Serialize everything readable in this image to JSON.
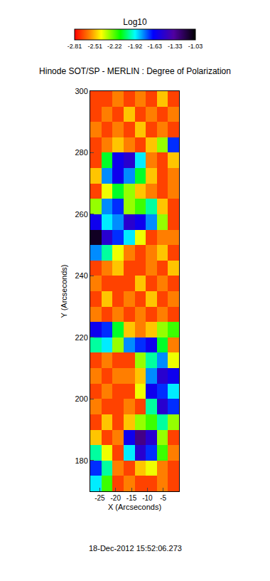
{
  "chart_data": {
    "type": "heatmap",
    "title": "Hinode SOT/SP - MERLIN : Degree of Polarization",
    "x_label": "X (Arcseconds)",
    "y_label": "Y (Arcseconds)",
    "xlim": [
      -28,
      0
    ],
    "ylim": [
      170,
      300
    ],
    "xticks": [
      -25,
      -20,
      -15,
      -10,
      -5
    ],
    "yticks": [
      180,
      200,
      220,
      240,
      260,
      280,
      300
    ],
    "grid": false,
    "x_edges": [
      -28,
      -24.5,
      -21,
      -17.5,
      -14,
      -10.5,
      -7,
      -3.5,
      0
    ],
    "y_edges": [
      170,
      175,
      180,
      185,
      190,
      195,
      200,
      205,
      210,
      215,
      220,
      225,
      230,
      235,
      240,
      245,
      250,
      255,
      260,
      265,
      270,
      275,
      280,
      285,
      290,
      295,
      300
    ],
    "z": [
      [
        -1.9,
        -2.2,
        -2.7,
        -2.6,
        -2.7,
        -2.7,
        -2.6,
        -2.7
      ],
      [
        -1.7,
        -2.0,
        -2.6,
        -2.7,
        -2.5,
        -2.4,
        -2.6,
        -2.7
      ],
      [
        -2.0,
        -2.4,
        -2.7,
        -1.9,
        -1.5,
        -1.7,
        -2.2,
        -2.6
      ],
      [
        -2.5,
        -2.7,
        -2.6,
        -1.6,
        -1.3,
        -1.5,
        -2.3,
        -2.7
      ],
      [
        -2.7,
        -2.5,
        -2.7,
        -2.5,
        -2.3,
        -2.2,
        -2.0,
        -2.3
      ],
      [
        -2.6,
        -2.7,
        -2.7,
        -2.6,
        -2.7,
        -2.0,
        -1.5,
        -1.7
      ],
      [
        -2.7,
        -2.6,
        -2.7,
        -2.7,
        -2.4,
        -1.6,
        -1.7,
        -1.9
      ],
      [
        -2.6,
        -2.7,
        -2.6,
        -2.6,
        -2.5,
        -1.8,
        -1.5,
        -1.6
      ],
      [
        -2.7,
        -2.6,
        -2.7,
        -2.7,
        -2.3,
        -2.0,
        -1.8,
        -2.4
      ],
      [
        -2.0,
        -1.9,
        -2.3,
        -1.8,
        -1.7,
        -1.6,
        -2.1,
        -2.6
      ],
      [
        -1.6,
        -1.7,
        -2.1,
        -2.5,
        -2.6,
        -2.5,
        -2.3,
        -2.2
      ],
      [
        -2.6,
        -2.7,
        -2.6,
        -2.7,
        -2.6,
        -2.7,
        -2.6,
        -2.7
      ],
      [
        -2.7,
        -2.5,
        -2.7,
        -2.6,
        -2.7,
        -2.5,
        -2.7,
        -2.6
      ],
      [
        -2.6,
        -2.7,
        -2.7,
        -2.7,
        -2.5,
        -2.7,
        -2.6,
        -2.7
      ],
      [
        -2.7,
        -2.6,
        -2.5,
        -2.7,
        -2.7,
        -2.6,
        -2.7,
        -2.5
      ],
      [
        -1.8,
        -2.0,
        -2.4,
        -2.6,
        -2.7,
        -2.6,
        -2.5,
        -2.7
      ],
      [
        -1.1,
        -1.5,
        -1.7,
        -1.9,
        -2.4,
        -2.7,
        -2.6,
        -2.6
      ],
      [
        -1.6,
        -1.9,
        -1.8,
        -1.5,
        -1.6,
        -1.8,
        -2.3,
        -2.7
      ],
      [
        -2.3,
        -1.8,
        -1.7,
        -2.3,
        -2.2,
        -2.0,
        -2.5,
        -2.7
      ],
      [
        -2.7,
        -2.4,
        -2.1,
        -2.3,
        -2.5,
        -2.6,
        -2.7,
        -2.6
      ],
      [
        -2.5,
        -1.8,
        -1.6,
        -1.8,
        -2.1,
        -2.5,
        -2.7,
        -2.6
      ],
      [
        -2.7,
        -2.1,
        -1.6,
        -1.5,
        -1.9,
        -2.6,
        -2.7,
        -2.5
      ],
      [
        -2.7,
        -2.6,
        -2.5,
        -2.6,
        -2.7,
        -2.5,
        -2.3,
        -1.7
      ],
      [
        -2.6,
        -2.7,
        -2.6,
        -2.7,
        -2.5,
        -2.7,
        -2.6,
        -2.7
      ],
      [
        -2.7,
        -2.6,
        -2.7,
        -2.5,
        -2.7,
        -2.6,
        -2.7,
        -2.6
      ],
      [
        -2.7,
        -2.7,
        -2.6,
        -2.7,
        -2.6,
        -2.7,
        -2.5,
        -2.7
      ]
    ],
    "colorbar": {
      "title": "Log10",
      "range": [
        -2.81,
        -1.03
      ],
      "ticks": [
        -2.81,
        -2.51,
        -2.22,
        -1.92,
        -1.63,
        -1.33,
        -1.03
      ]
    },
    "annotations": [
      "18-Dec-2012 15:52:06.273"
    ]
  }
}
